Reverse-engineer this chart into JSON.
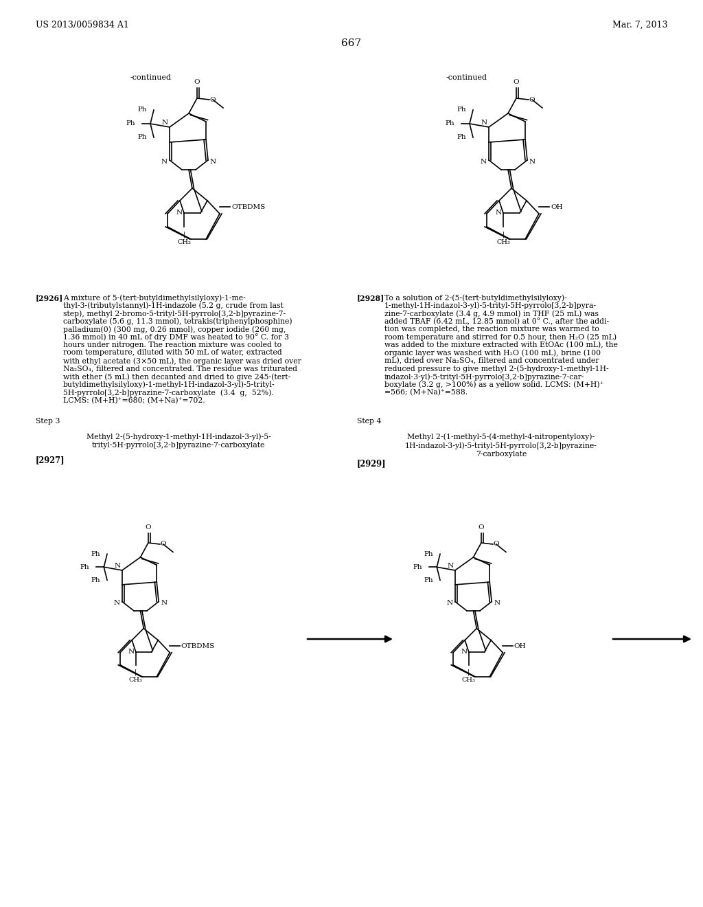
{
  "page_number": "667",
  "header_left": "US 2013/0059834 A1",
  "header_right": "Mar. 7, 2013",
  "continued_left": "-continued",
  "continued_right": "-continued",
  "para_2926_label": "[2926]",
  "para_2926_text": "A mixture of 5-(tert-butyldimethylsilyloxy)-1-me-\nthyl-3-(tributylstannyl)-1H-indazole (5.2 g, crude from last\nstep), methyl 2-bromo-5-trityl-5H-pyrrolo[3,2-b]pyrazine-7-\ncarboxylate (5.6 g, 11.3 mmol), tetrakis(triphenylphosphine)\npalladium(0) (300 mg, 0.26 mmol), copper iodide (260 mg,\n1.36 mmol) in 40 mL of dry DMF was heated to 90° C. for 3\nhours under nitrogen. The reaction mixture was cooled to\nroom temperature, diluted with 50 mL of water, extracted\nwith ethyl acetate (3×50 mL), the organic layer was dried over\nNa₂SO₄, filtered and concentrated. The residue was triturated\nwith ether (5 mL) then decanted and dried to give 245-(tert-\nbutyldimethylsilyloxy)-1-methyl-1H-indazol-3-yl)-5-trityl-\n5H-pyrrolo[3,2-b]pyrazine-7-carboxylate  (3.4  g,  52%).\nLCMS: (M+H)⁺=680; (M+Na)⁺=702.",
  "para_2928_label": "[2928]",
  "para_2928_text": "To a solution of 2-(5-(tert-butyldimethylsilyloxy)-\n1-methyl-1H-indazol-3-yl)-5-trityl-5H-pyrrolo[3,2-b]pyra-\nzine-7-carboxylate (3.4 g, 4.9 mmol) in THF (25 mL) was\nadded TBAF (6.42 mL, 12.85 mmol) at 0° C., after the addi-\ntion was completed, the reaction mixture was warmed to\nroom temperature and stirred for 0.5 hour, then H₂O (25 mL)\nwas added to the mixture extracted with EtOAc (100 mL), the\norganic layer was washed with H₂O (100 mL), brine (100\nmL), dried over Na₂SO₄, filtered and concentrated under\nreduced pressure to give methyl 2-(5-hydroxy-1-methyl-1H-\nindazol-3-yl)-5-trityl-5H-pyrrolo[3,2-b]pyrazine-7-car-\nboxylate (3.2 g, >100%) as a yellow solid. LCMS: (M+H)⁺\n=566; (M+Na)⁺=588.",
  "step3_label": "Step 3",
  "step3_line1": "Methyl 2-(5-hydroxy-1-methyl-1H-indazol-3-yl)-5-",
  "step3_line2": "trityl-5H-pyrrolo[3,2-b]pyrazine-7-carboxylate",
  "step3_ref": "[2927]",
  "step4_label": "Step 4",
  "step4_line1": "Methyl 2-(1-methyl-5-(4-methyl-4-nitropentyloxy)-",
  "step4_line2": "1H-indazol-3-yl)-5-trityl-5H-pyrrolo[3,2-b]pyrazine-",
  "step4_line3": "7-carboxylate",
  "step4_ref": "[2929]",
  "bg_color": "#ffffff",
  "text_color": "#000000",
  "font_size_header": 9.0,
  "font_size_body": 8.0,
  "font_size_page_num": 11,
  "arrow_color": "#000000"
}
